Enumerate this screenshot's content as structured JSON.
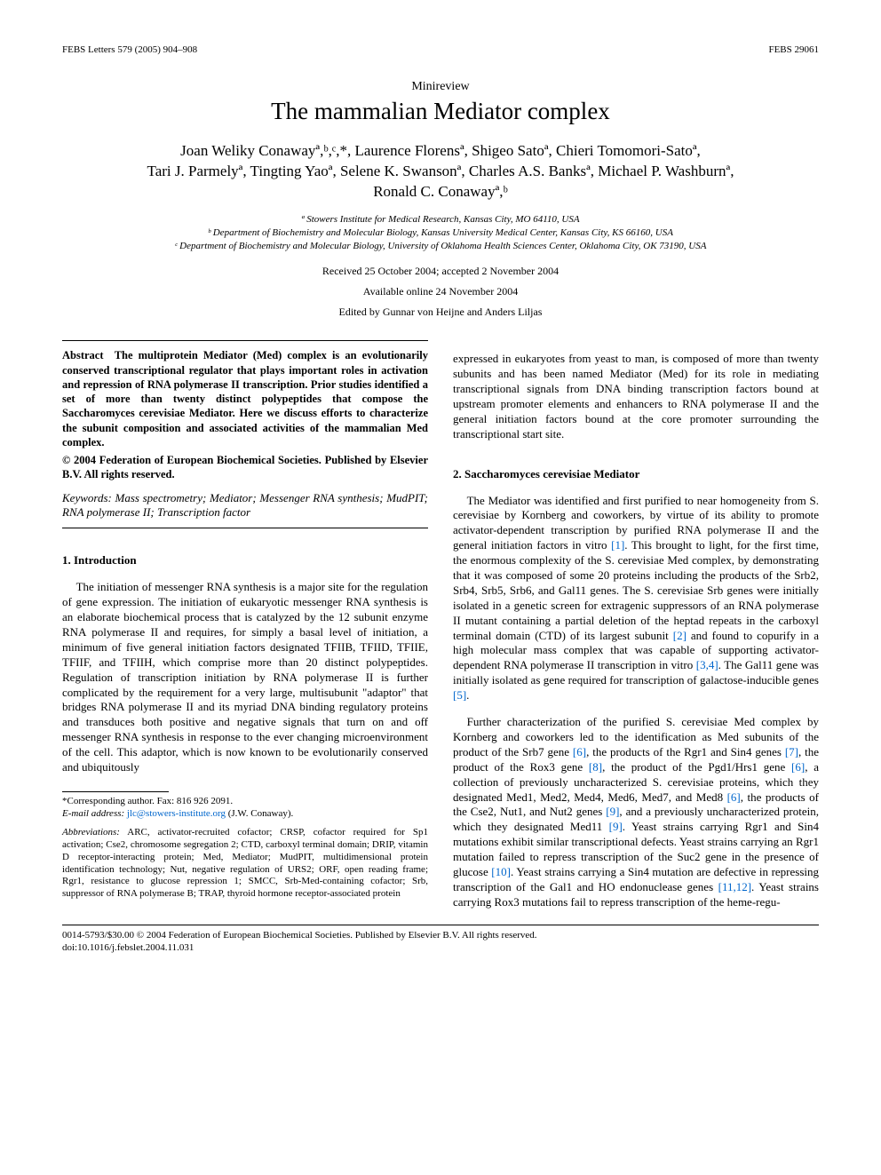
{
  "header": {
    "left": "FEBS Letters 579 (2005) 904–908",
    "right": "FEBS 29061"
  },
  "article_type": "Minireview",
  "title": "The mammalian Mediator complex",
  "authors_line1": "Joan Weliky Conawayª,ᵇ,ᶜ,*, Laurence Florensª, Shigeo Satoª, Chieri Tomomori-Satoª,",
  "authors_line2": "Tari J. Parmelyª, Tingting Yaoª, Selene K. Swansonª, Charles A.S. Banksª, Michael P. Washburnª,",
  "authors_line3": "Ronald C. Conawayª,ᵇ",
  "affiliations": {
    "a": "ª Stowers Institute for Medical Research, Kansas City, MO 64110, USA",
    "b": "ᵇ Department of Biochemistry and Molecular Biology, Kansas University Medical Center, Kansas City, KS 66160, USA",
    "c": "ᶜ Department of Biochemistry and Molecular Biology, University of Oklahoma Health Sciences Center, Oklahoma City, OK 73190, USA"
  },
  "received": "Received 25 October 2004; accepted 2 November 2004",
  "available": "Available online 24 November 2004",
  "edited": "Edited by Gunnar von Heijne and Anders Liljas",
  "abstract": {
    "label": "Abstract",
    "text": "The multiprotein Mediator (Med) complex is an evolutionarily conserved transcriptional regulator that plays important roles in activation and repression of RNA polymerase II transcription. Prior studies identified a set of more than twenty distinct polypeptides that compose the Saccharomyces cerevisiae Mediator. Here we discuss efforts to characterize the subunit composition and associated activities of the mammalian Med complex.",
    "copyright": "© 2004 Federation of European Biochemical Societies. Published by Elsevier B.V. All rights reserved."
  },
  "keywords": {
    "label": "Keywords:",
    "text": "Mass spectrometry; Mediator; Messenger RNA synthesis; MudPIT; RNA polymerase II; Transcription factor"
  },
  "sections": {
    "intro": {
      "heading": "1. Introduction",
      "p1": "The initiation of messenger RNA synthesis is a major site for the regulation of gene expression. The initiation of eukaryotic messenger RNA synthesis is an elaborate biochemical process that is catalyzed by the 12 subunit enzyme RNA polymerase II and requires, for simply a basal level of initiation, a minimum of five general initiation factors designated TFIIB, TFIID, TFIIE, TFIIF, and TFIIH, which comprise more than 20 distinct polypeptides. Regulation of transcription initiation by RNA polymerase II is further complicated by the requirement for a very large, multisubunit \"adaptor\" that bridges RNA polymerase II and its myriad DNA binding regulatory proteins and transduces both positive and negative signals that turn on and off messenger RNA synthesis in response to the ever changing microenvironment of the cell. This adaptor, which is now known to be evolutionarily conserved and ubiquitously",
      "p1_cont": "expressed in eukaryotes from yeast to man, is composed of more than twenty subunits and has been named Mediator (Med) for its role in mediating transcriptional signals from DNA binding transcription factors bound at upstream promoter elements and enhancers to RNA polymerase II and the general initiation factors bound at the core promoter surrounding the transcriptional start site."
    },
    "s2": {
      "heading": "2. Saccharomyces cerevisiae Mediator",
      "p1_a": "The Mediator was identified and first purified to near homogeneity from S. cerevisiae by Kornberg and coworkers, by virtue of its ability to promote activator-dependent transcription by purified RNA polymerase II and the general initiation factors in vitro ",
      "ref1": "[1]",
      "p1_b": ". This brought to light, for the first time, the enormous complexity of the S. cerevisiae Med complex, by demonstrating that it was composed of some 20 proteins including the products of the Srb2, Srb4, Srb5, Srb6, and Gal11 genes. The S. cerevisiae Srb genes were initially isolated in a genetic screen for extragenic suppressors of an RNA polymerase II mutant containing a partial deletion of the heptad repeats in the carboxyl terminal domain (CTD) of its largest subunit ",
      "ref2": "[2]",
      "p1_c": " and found to copurify in a high molecular mass complex that was capable of supporting activator-dependent RNA polymerase II transcription in vitro ",
      "ref34": "[3,4]",
      "p1_d": ". The Gal11 gene was initially isolated as gene required for transcription of galactose-inducible genes ",
      "ref5": "[5]",
      "p1_e": ".",
      "p2_a": "Further characterization of the purified S. cerevisiae Med complex by Kornberg and coworkers led to the identification as Med subunits of the product of the Srb7 gene ",
      "ref6a": "[6]",
      "p2_b": ", the products of the Rgr1 and Sin4 genes ",
      "ref7": "[7]",
      "p2_c": ", the product of the Rox3 gene ",
      "ref8": "[8]",
      "p2_d": ", the product of the Pgd1/Hrs1 gene ",
      "ref6b": "[6]",
      "p2_e": ", a collection of previously uncharacterized S. cerevisiae proteins, which they designated Med1, Med2, Med4, Med6, Med7, and Med8 ",
      "ref6c": "[6]",
      "p2_f": ", the products of the Cse2, Nut1, and Nut2 genes ",
      "ref9a": "[9]",
      "p2_g": ", and a previously uncharacterized protein, which they designated Med11 ",
      "ref9b": "[9]",
      "p2_h": ". Yeast strains carrying Rgr1 and Sin4 mutations exhibit similar transcriptional defects. Yeast strains carrying an Rgr1 mutation failed to repress transcription of the Suc2 gene in the presence of glucose ",
      "ref10": "[10]",
      "p2_i": ". Yeast strains carrying a Sin4 mutation are defective in repressing transcription of the Gal1 and HO endonuclease genes ",
      "ref1112": "[11,12]",
      "p2_j": ". Yeast strains carrying Rox3 mutations fail to repress transcription of the heme-regu-"
    }
  },
  "footnotes": {
    "corr_label": "*Corresponding author. Fax: 816 926 2091.",
    "email_label": "E-mail address:",
    "email": "jlc@stowers-institute.org",
    "email_tail": "(J.W. Conaway).",
    "abbrev_label": "Abbreviations:",
    "abbrev": "ARC, activator-recruited cofactor; CRSP, cofactor required for Sp1 activation; Cse2, chromosome segregation 2; CTD, carboxyl terminal domain; DRIP, vitamin D receptor-interacting protein; Med, Mediator; MudPIT, multidimensional protein identification technology; Nut, negative regulation of URS2; ORF, open reading frame; Rgr1, resistance to glucose repression 1; SMCC, Srb-Med-containing cofactor; Srb, suppressor of RNA polymerase B; TRAP, thyroid hormone receptor-associated protein"
  },
  "footer": {
    "line1": "0014-5793/$30.00 © 2004 Federation of European Biochemical Societies. Published by Elsevier B.V. All rights reserved.",
    "line2": "doi:10.1016/j.febslet.2004.11.031"
  },
  "colors": {
    "link": "#0066cc",
    "text": "#000000",
    "background": "#ffffff"
  }
}
